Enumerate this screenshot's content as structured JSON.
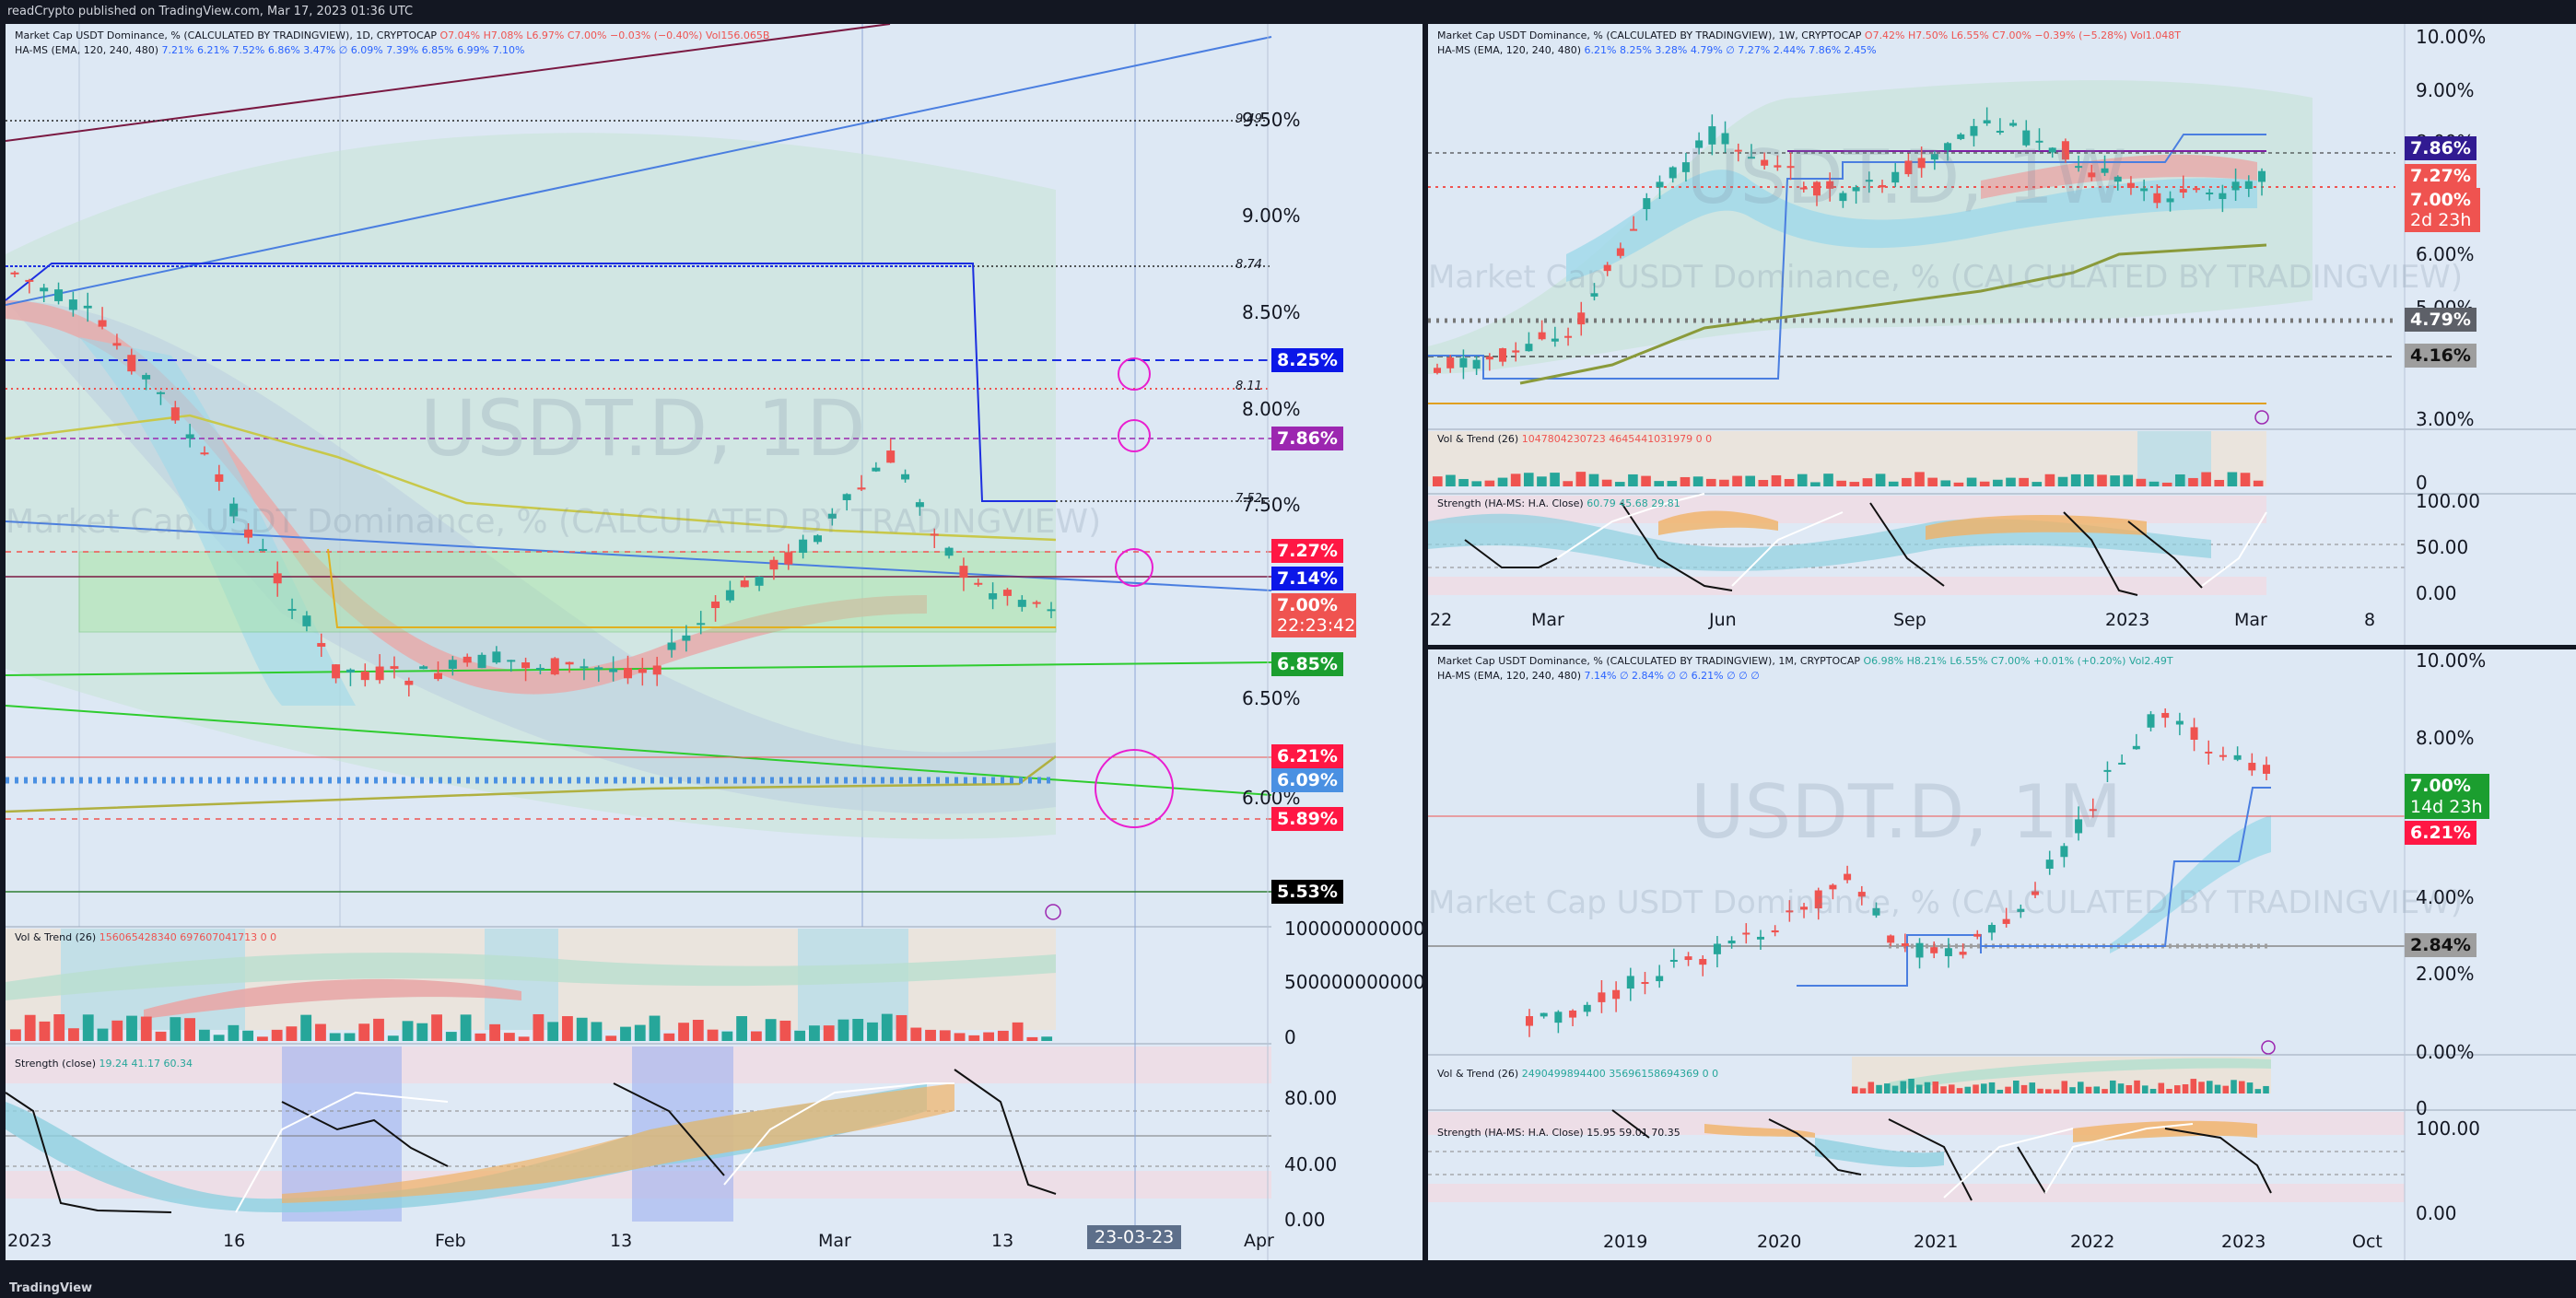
{
  "header": {
    "publish_text": "readCrypto published on TradingView.com, Mar 17, 2023 01:36 UTC"
  },
  "footer": {
    "brand": "TradingView"
  },
  "colors": {
    "up": "#26a69a",
    "down": "#ef5350",
    "panel_bg": "#dfe9f5",
    "frame_bg": "#131722"
  },
  "daily": {
    "info1": "Market Cap USDT Dominance, % (CALCULATED BY TRADINGVIEW), 1D, CRYPTOCAP",
    "ohlc": "O7.04% H7.08% L6.97% C7.00% −0.03% (−0.40%) Vol156.065B",
    "info2": "HA-MS (EMA, 120, 240, 480)",
    "info2_vals": "7.21% 6.21% 7.52% 6.86% 3.47% ∅ 6.09% 7.39% 6.85% 6.99% 7.10%",
    "watermark_big": "USDT.D, 1D",
    "watermark_small": "Market Cap USDT Dominance, % (CALCULATED BY TRADINGVIEW)",
    "y_labels": [
      "9.50%",
      "9.00%",
      "8.50%",
      "8.00%",
      "7.50%",
      "6.50%",
      "6.00%"
    ],
    "line_labels": [
      "9.49",
      "8.74",
      "8.11",
      "7.52"
    ],
    "tags": [
      {
        "text": "8.25%",
        "color": "#0b17e8"
      },
      {
        "text": "7.86%",
        "color": "#9c27b0"
      },
      {
        "text": "7.27%",
        "color": "#ff1744"
      },
      {
        "text": "7.14%",
        "color": "#0b17e8"
      },
      {
        "text": "7.00%",
        "color": "#ef5350"
      },
      {
        "text": "22:23:42",
        "color": "#ef5350"
      },
      {
        "text": "6.85%",
        "color": "#1b9e2f"
      },
      {
        "text": "6.21%",
        "color": "#ff1744"
      },
      {
        "text": "6.09%",
        "color": "#4a90e2"
      },
      {
        "text": "5.89%",
        "color": "#ff1744"
      },
      {
        "text": "5.53%",
        "color": "#000000"
      }
    ],
    "vol_title": "Vol & Trend (26)",
    "vol_vals": "156065428340 697607041713 0 0",
    "vol_axis": [
      "1000000000000",
      "500000000000",
      "0"
    ],
    "str_title": "Strength (close)",
    "str_vals": "19.24 41.17 60.34",
    "str_axis": [
      "80.00",
      "40.00",
      "0.00"
    ],
    "x_labels": [
      "2023",
      "16",
      "Feb",
      "13",
      "Mar",
      "13",
      "Apr"
    ],
    "date_tag": "23-03-23"
  },
  "weekly": {
    "info1": "Market Cap USDT Dominance, % (CALCULATED BY TRADINGVIEW), 1W, CRYPTOCAP",
    "ohlc": "O7.42% H7.50% L6.55% C7.00% −0.39% (−5.28%) Vol1.048T",
    "info2": "HA-MS (EMA, 120, 240, 480)",
    "info2_vals": "6.21% 8.25% 3.28% 4.79% ∅ 7.27% 2.44% 7.86% 2.45%",
    "watermark_big": "USDT.D, 1W",
    "watermark_small": "Market Cap USDT Dominance, % (CALCULATED BY TRADINGVIEW)",
    "y_labels": [
      "10.00%",
      "9.00%",
      "8.00%",
      "6.00%",
      "5.00%",
      "3.00%",
      "0"
    ],
    "tags": [
      {
        "text": "7.86%",
        "color": "#311b92"
      },
      {
        "text": "7.27%",
        "color": "#ef5350"
      },
      {
        "text": "7.00%",
        "color": "#ef5350"
      },
      {
        "text": "2d 23h",
        "color": "#ef5350"
      },
      {
        "text": "4.79%",
        "color": "#5d6068"
      },
      {
        "text": "4.16%",
        "color": "#9e9e9e"
      }
    ],
    "vol_title": "Vol & Trend (26)",
    "vol_vals": "1047804230723 4645441031979 0 0",
    "str_title": "Strength (HA-MS: H.A. Close)",
    "str_vals": "60.79 45.68 29.81",
    "str_axis": [
      "100.00",
      "50.00",
      "0.00"
    ],
    "x_labels": [
      "22",
      "Mar",
      "Jun",
      "Sep",
      "2023",
      "Mar",
      "8"
    ]
  },
  "monthly": {
    "info1": "Market Cap USDT Dominance, % (CALCULATED BY TRADINGVIEW), 1M, CRYPTOCAP",
    "ohlc": "O6.98% H8.21% L6.55% C7.00% +0.01% (+0.20%) Vol2.49T",
    "info2": "HA-MS (EMA, 120, 240, 480)",
    "info2_vals": "7.14% ∅ 2.84% ∅ ∅ 6.21% ∅ ∅ ∅",
    "watermark_big": "USDT.D, 1M",
    "watermark_small": "Market Cap USDT Dominance, % (CALCULATED BY TRADINGVIEW)",
    "y_labels": [
      "10.00%",
      "8.00%",
      "4.00%",
      "2.00%",
      "0.00%"
    ],
    "tags": [
      {
        "text": "7.00%",
        "color": "#1b9e2f"
      },
      {
        "text": "14d 23h",
        "color": "#1b9e2f"
      },
      {
        "text": "6.21%",
        "color": "#ff1744"
      },
      {
        "text": "2.84%",
        "color": "#9e9e9e"
      }
    ],
    "vol_title": "Vol & Trend (26)",
    "vol_vals": "2490499894400 35696158694369 0 0",
    "vol_axis": [
      "0"
    ],
    "str_title": "Strength (HA-MS: H.A. Close)",
    "str_vals": "15.95 59.01 70.35",
    "str_axis": [
      "100.00",
      "0.00"
    ],
    "x_labels": [
      "2019",
      "2020",
      "2021",
      "2022",
      "2023",
      "Oct"
    ]
  }
}
